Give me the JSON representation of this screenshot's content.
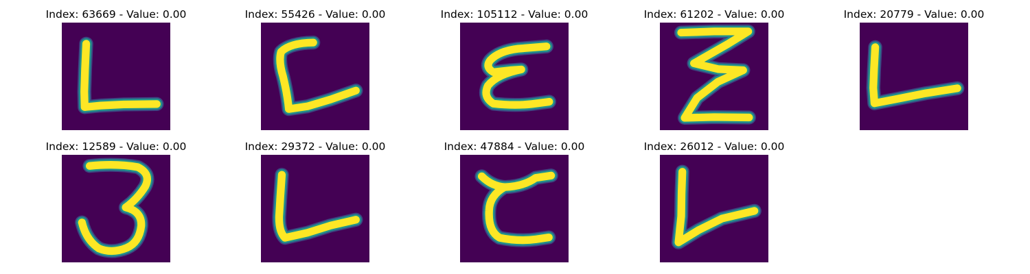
{
  "colors": {
    "background": "#440154",
    "stroke_mid": "#21918c",
    "stroke_core": "#fde725",
    "stroke_edge": "#3b528b"
  },
  "panels": [
    {
      "title": "Index: 63669 - Value: 0.00",
      "glyph": "L-tall"
    },
    {
      "title": "Index: 55426 - Value: 0.00",
      "glyph": "L-curved"
    },
    {
      "title": "Index: 105112 - Value: 0.00",
      "glyph": "epsilon"
    },
    {
      "title": "Index: 61202 - Value: 0.00",
      "glyph": "z-stacked"
    },
    {
      "title": "Index: 20779 - Value: 0.00",
      "glyph": "L-slanted"
    },
    {
      "title": "Index: 12589 - Value: 0.00",
      "glyph": "three"
    },
    {
      "title": "Index: 29372 - Value: 0.00",
      "glyph": "L-rounded"
    },
    {
      "title": "Index: 47884 - Value: 0.00",
      "glyph": "epsilon-wide"
    },
    {
      "title": "Index: 26012 - Value: 0.00",
      "glyph": "V-slanted"
    }
  ]
}
